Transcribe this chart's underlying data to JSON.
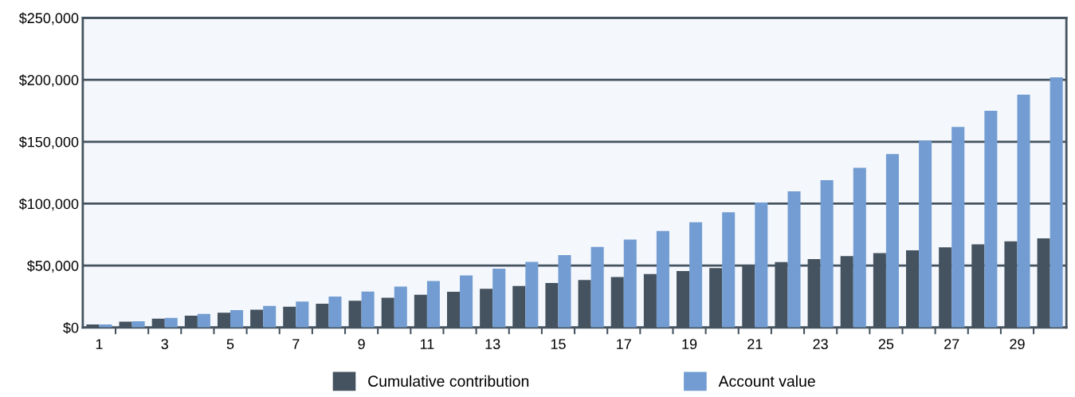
{
  "chart_data": {
    "type": "bar",
    "categories": [
      "1",
      null,
      "3",
      null,
      "5",
      null,
      "7",
      null,
      "9",
      null,
      "11",
      null,
      "13",
      null,
      "15",
      null,
      "17",
      null,
      "19",
      null,
      "21",
      null,
      "23",
      null,
      "25",
      null,
      "27",
      null,
      "29",
      null
    ],
    "series": [
      {
        "name": "Cumulative contribution",
        "color": "#44535f",
        "values": [
          2400,
          4800,
          7200,
          9600,
          12000,
          14400,
          16800,
          19200,
          21600,
          24000,
          26400,
          28800,
          31200,
          33600,
          36000,
          38400,
          40800,
          43200,
          45600,
          48000,
          50400,
          52800,
          55200,
          57600,
          60000,
          62400,
          64800,
          67200,
          69600,
          72000
        ]
      },
      {
        "name": "Account value",
        "color": "#739dd2",
        "values": [
          2500,
          5000,
          7800,
          11000,
          14000,
          17500,
          21000,
          25000,
          29000,
          33000,
          37500,
          42000,
          47500,
          53000,
          58500,
          65000,
          71000,
          78000,
          85000,
          93000,
          101000,
          110000,
          119000,
          129000,
          140000,
          151000,
          162000,
          175000,
          188000,
          202000
        ]
      }
    ],
    "ylim": [
      0,
      250000
    ],
    "yticks": [
      {
        "value": 0,
        "label": "$0"
      },
      {
        "value": 50000,
        "label": "$50,000"
      },
      {
        "value": 100000,
        "label": "$100,000"
      },
      {
        "value": 150000,
        "label": "$150,000"
      },
      {
        "value": 200000,
        "label": "$200,000"
      },
      {
        "value": 250000,
        "label": "$250,000"
      }
    ],
    "grid": "y",
    "legend": "bottom"
  }
}
